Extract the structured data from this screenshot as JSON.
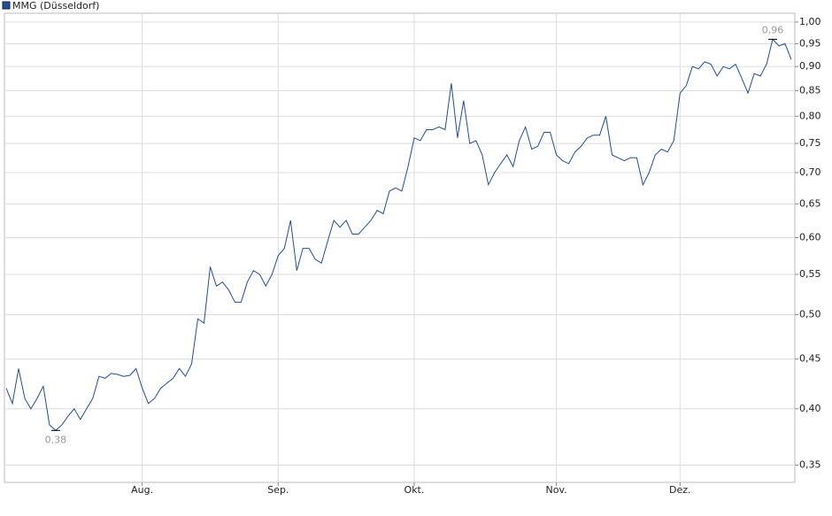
{
  "chart_data": {
    "type": "line",
    "log_scale": true,
    "grid": true,
    "legend": "top-left",
    "categories": [
      null,
      null,
      null,
      null,
      null,
      null,
      null,
      null,
      null,
      null,
      null,
      null,
      null,
      null,
      null,
      null,
      null,
      null,
      null,
      null,
      null,
      null,
      "Aug.",
      null,
      null,
      null,
      null,
      null,
      null,
      null,
      null,
      null,
      null,
      null,
      null,
      null,
      null,
      null,
      null,
      null,
      null,
      null,
      null,
      null,
      "Sep.",
      null,
      null,
      null,
      null,
      null,
      null,
      null,
      null,
      null,
      null,
      null,
      null,
      null,
      null,
      null,
      null,
      null,
      null,
      null,
      null,
      null,
      "Okt.",
      null,
      null,
      null,
      null,
      null,
      null,
      null,
      null,
      null,
      null,
      null,
      null,
      null,
      null,
      null,
      null,
      null,
      null,
      null,
      null,
      null,
      null,
      "Nov.",
      null,
      null,
      null,
      null,
      null,
      null,
      null,
      null,
      null,
      null,
      null,
      null,
      null,
      null,
      null,
      null,
      null,
      null,
      null,
      "Dez.",
      null,
      null,
      null,
      null,
      null,
      null,
      null,
      null,
      null,
      null,
      null,
      null,
      null,
      null,
      null,
      null,
      null,
      null
    ],
    "series": [
      {
        "name": "MMG (Düsseldorf)",
        "color": "#1f4e9c",
        "values": [
          0.42,
          0.405,
          0.44,
          0.41,
          0.4,
          0.41,
          0.422,
          0.385,
          0.38,
          0.385,
          0.393,
          0.4,
          0.39,
          0.4,
          0.41,
          0.432,
          0.43,
          0.435,
          0.434,
          0.432,
          0.433,
          0.44,
          0.42,
          0.405,
          0.41,
          0.42,
          0.425,
          0.43,
          0.44,
          0.432,
          0.445,
          0.495,
          0.49,
          0.56,
          0.535,
          0.54,
          0.53,
          0.515,
          0.515,
          0.54,
          0.555,
          0.55,
          0.535,
          0.55,
          0.575,
          0.585,
          0.625,
          0.555,
          0.585,
          0.585,
          0.57,
          0.565,
          0.595,
          0.625,
          0.615,
          0.625,
          0.605,
          0.605,
          0.615,
          0.625,
          0.64,
          0.635,
          0.67,
          0.675,
          0.67,
          0.71,
          0.76,
          0.755,
          0.775,
          0.775,
          0.78,
          0.775,
          0.865,
          0.76,
          0.83,
          0.75,
          0.755,
          0.73,
          0.68,
          0.7,
          0.715,
          0.73,
          0.71,
          0.755,
          0.78,
          0.74,
          0.745,
          0.77,
          0.77,
          0.73,
          0.72,
          0.715,
          0.735,
          0.745,
          0.76,
          0.765,
          0.765,
          0.8,
          0.73,
          0.725,
          0.72,
          0.725,
          0.725,
          0.68,
          0.7,
          0.73,
          0.74,
          0.735,
          0.755,
          0.845,
          0.86,
          0.9,
          0.895,
          0.91,
          0.905,
          0.88,
          0.9,
          0.895,
          0.905,
          0.875,
          0.845,
          0.885,
          0.88,
          0.905,
          0.96,
          0.945,
          0.95,
          0.915
        ],
        "value_labels": [
          null,
          null,
          null,
          null,
          null,
          null,
          null,
          null,
          "0,38",
          null,
          null,
          null,
          null,
          null,
          null,
          null,
          null,
          null,
          null,
          null,
          null,
          null,
          null,
          null,
          null,
          null,
          null,
          null,
          null,
          null,
          null,
          null,
          null,
          null,
          null,
          null,
          null,
          null,
          null,
          null,
          null,
          null,
          null,
          null,
          null,
          null,
          null,
          null,
          null,
          null,
          null,
          null,
          null,
          null,
          null,
          null,
          null,
          null,
          null,
          null,
          null,
          null,
          null,
          null,
          null,
          null,
          null,
          null,
          null,
          null,
          null,
          null,
          null,
          null,
          null,
          null,
          null,
          null,
          null,
          null,
          null,
          null,
          null,
          null,
          null,
          null,
          null,
          null,
          null,
          null,
          null,
          null,
          null,
          null,
          null,
          null,
          null,
          null,
          null,
          null,
          null,
          null,
          null,
          null,
          null,
          null,
          null,
          null,
          null,
          null,
          null,
          null,
          null,
          null,
          null,
          null,
          null,
          null,
          null,
          null,
          null,
          null,
          null,
          null,
          "0,96",
          null,
          null,
          null
        ]
      }
    ],
    "ylim": [
      0.336,
      1.021
    ],
    "yticks": [
      {
        "value": 0.35,
        "label": "0,35"
      },
      {
        "value": 0.4,
        "label": "0,40"
      },
      {
        "value": 0.45,
        "label": "0,45"
      },
      {
        "value": 0.5,
        "label": "0,50"
      },
      {
        "value": 0.55,
        "label": "0,55"
      },
      {
        "value": 0.6,
        "label": "0,60"
      },
      {
        "value": 0.65,
        "label": "0,65"
      },
      {
        "value": 0.7,
        "label": "0,70"
      },
      {
        "value": 0.75,
        "label": "0,75"
      },
      {
        "value": 0.8,
        "label": "0,80"
      },
      {
        "value": 0.85,
        "label": "0,85"
      },
      {
        "value": 0.9,
        "label": "0,90"
      },
      {
        "value": 0.95,
        "label": "0,95"
      },
      {
        "value": 1,
        "label": "1,00"
      }
    ]
  }
}
